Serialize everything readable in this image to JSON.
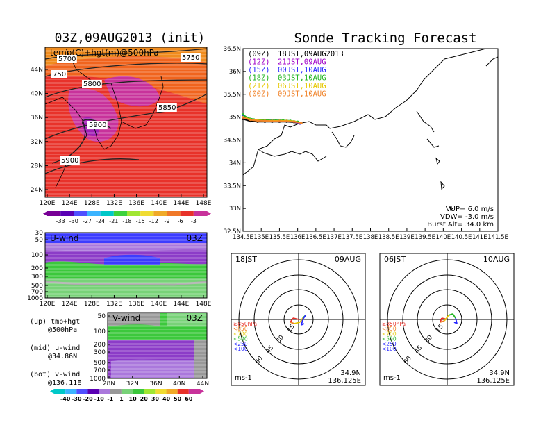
{
  "left_title": "03Z,09AUG2013 (init)",
  "right_title": "Sonde Tracking Forecast",
  "map_panel": {
    "label": "temp(C)+hgt(m)@500hPa",
    "x_ticks": [
      "120E",
      "124E",
      "128E",
      "132E",
      "136E",
      "140E",
      "144E",
      "148E"
    ],
    "y_ticks": [
      "24N",
      "28N",
      "32N",
      "36N",
      "40N",
      "44N"
    ],
    "contours": [
      "5700",
      "5750",
      "5800",
      "5850",
      "5900",
      "5900",
      "750",
      "5900"
    ],
    "colorbar_ticks": [
      "-33",
      "-30",
      "-27",
      "-24",
      "-21",
      "-18",
      "-15",
      "-12",
      "-9",
      "-6",
      "-3"
    ]
  },
  "u_panel": {
    "title": "U-wind",
    "time": "03Z",
    "y_ticks": [
      "30",
      "50",
      "100",
      "200",
      "300",
      "500",
      "700",
      "1000"
    ],
    "x_ticks": [
      "120E",
      "124E",
      "128E",
      "132E",
      "136E",
      "140E",
      "144E",
      "148E"
    ]
  },
  "v_panel": {
    "title": "V-wind",
    "time": "03Z",
    "y_ticks": [
      "50",
      "100",
      "200",
      "300",
      "500",
      "700",
      "1000"
    ],
    "x_ticks": [
      "28N",
      "32N",
      "36N",
      "40N",
      "44N"
    ]
  },
  "side_notes": [
    {
      "line1": "(up) tmp+hgt",
      "line2": "@500hPa"
    },
    {
      "line1": "(mid) u-wind",
      "line2": "@34.86N"
    },
    {
      "line1": "(bot) v-wind",
      "line2": "@136.11E"
    }
  ],
  "wind_colorbar_ticks": [
    "-40",
    "-30",
    "-20",
    "-10",
    "-1",
    "1",
    "10",
    "20",
    "30",
    "40",
    "50",
    "60"
  ],
  "track_map": {
    "legend": [
      {
        "code": "(09Z)",
        "text": "18JST,09AUG2013",
        "color": "#000000"
      },
      {
        "code": "(12Z)",
        "text": "21JST,09AUG",
        "color": "#a000c8"
      },
      {
        "code": "(15Z)",
        "text": "00JST,10AUG",
        "color": "#2828ff"
      },
      {
        "code": "(18Z)",
        "text": "03JST,10AUG",
        "color": "#1eb41e"
      },
      {
        "code": "(21Z)",
        "text": "06JST,10AUG",
        "color": "#e6c800"
      },
      {
        "code": "(00Z)",
        "text": "09JST,10AUG",
        "color": "#f08228"
      }
    ],
    "x_ticks": [
      "134.5E",
      "135E",
      "135.5E",
      "136E",
      "136.5E",
      "137E",
      "137.5E",
      "138E",
      "138.5E",
      "139E",
      "139.5E",
      "140E",
      "140.5E",
      "141E",
      "141.5E"
    ],
    "y_ticks": [
      "36.5N",
      "36N",
      "35.5N",
      "35N",
      "34.5N",
      "34N",
      "33.5N",
      "33N",
      "32.5N"
    ],
    "params": [
      "VUP= 6.0 m/s",
      "VDW= -3.0 m/s",
      "Burst Alt= 34.0 km"
    ]
  },
  "hodographs": [
    {
      "time": "18JST",
      "date": "09AUG",
      "lat": "34.9N",
      "lon": "136.125E",
      "unit": "ms-1",
      "ring_labels": [
        "15",
        "30",
        "45",
        "60"
      ],
      "levels": [
        "≥850hPa",
        "<850",
        "<700",
        "<500",
        "<250",
        "<100"
      ]
    },
    {
      "time": "06JST",
      "date": "10AUG",
      "lat": "34.9N",
      "lon": "136.125E",
      "unit": "ms-1",
      "ring_labels": [
        "15",
        "30",
        "45",
        "60"
      ],
      "levels": [
        "≥850hPa",
        "<850",
        "<700",
        "<500",
        "<250",
        "<100"
      ]
    }
  ],
  "chart_data": {
    "type": "line",
    "title": "Sonde Tracking Forecast",
    "xlim": [
      134.5,
      141.5
    ],
    "ylim": [
      32.5,
      36.5
    ],
    "series": [
      {
        "name": "(09Z) 18JST,09AUG2013",
        "x": [
          134.5,
          134.7,
          134.9,
          135.1,
          135.3,
          135.5,
          135.7,
          135.9,
          136.06
        ],
        "y": [
          34.96,
          34.91,
          34.9,
          34.9,
          34.9,
          34.9,
          34.9,
          34.89,
          34.86
        ]
      },
      {
        "name": "(12Z) 21JST,09AUG",
        "x": [
          134.5,
          134.7,
          134.9,
          135.1,
          135.3,
          135.5,
          135.7,
          135.9,
          136.07
        ],
        "y": [
          35.02,
          34.96,
          34.94,
          34.93,
          34.93,
          34.92,
          34.92,
          34.9,
          34.86
        ]
      },
      {
        "name": "(15Z) 00JST,10AUG",
        "x": [
          134.5,
          134.7,
          134.9,
          135.1,
          135.3,
          135.5,
          135.7,
          135.9,
          136.08
        ],
        "y": [
          35.04,
          34.96,
          34.94,
          34.93,
          34.93,
          34.93,
          34.92,
          34.91,
          34.86
        ]
      },
      {
        "name": "(18Z) 03JST,10AUG",
        "x": [
          134.5,
          134.6,
          134.8,
          135.0,
          135.2,
          135.4,
          135.6,
          135.8,
          136.0,
          136.09
        ],
        "y": [
          35.06,
          34.99,
          34.95,
          34.94,
          34.93,
          34.93,
          34.93,
          34.92,
          34.9,
          34.87
        ]
      },
      {
        "name": "(21Z) 06JST,10AUG",
        "x": [
          134.5,
          134.7,
          134.9,
          135.1,
          135.3,
          135.5,
          135.7,
          135.9,
          136.1
        ],
        "y": [
          35.0,
          34.95,
          34.93,
          34.92,
          34.92,
          34.92,
          34.92,
          34.91,
          34.87
        ]
      },
      {
        "name": "(00Z) 09JST,10AUG",
        "x": [
          134.5,
          134.7,
          134.9,
          135.1,
          135.3,
          135.5,
          135.7,
          135.9,
          136.1
        ],
        "y": [
          34.99,
          34.94,
          34.92,
          34.92,
          34.91,
          34.91,
          34.91,
          34.9,
          34.87
        ]
      }
    ]
  }
}
